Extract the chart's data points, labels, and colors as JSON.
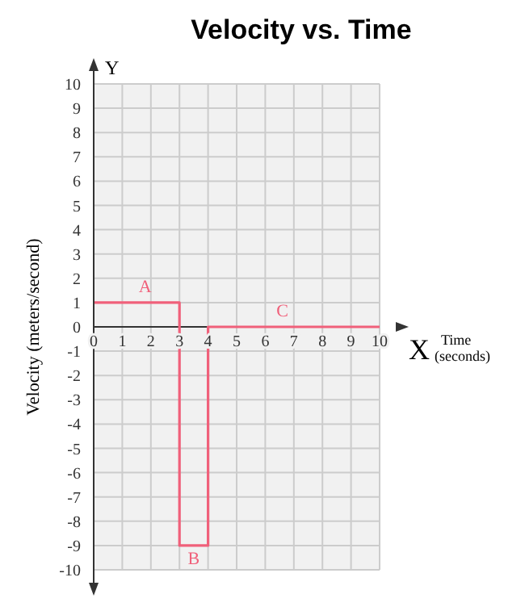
{
  "chart_data": {
    "type": "step",
    "title": "Velocity vs. Time",
    "xlabel": "Time (seconds)",
    "ylabel": "Velocity (meters/second)",
    "x": [
      0,
      3,
      4,
      10
    ],
    "series": [
      {
        "color": "#f0607a",
        "values": [
          1,
          -9,
          0,
          0
        ]
      }
    ],
    "xlim": [
      0,
      10
    ],
    "ylim": [
      -10,
      10
    ],
    "xticks": [
      0,
      1,
      2,
      3,
      4,
      5,
      6,
      7,
      8,
      9,
      10
    ],
    "yticks": [
      -10,
      -9,
      -8,
      -7,
      -6,
      -5,
      -4,
      -3,
      -2,
      -1,
      0,
      1,
      2,
      3,
      4,
      5,
      6,
      7,
      8,
      9,
      10
    ],
    "grid": true,
    "annotations": [
      "Y",
      "X",
      {
        "text": "A",
        "x": 1.8,
        "y": 1
      },
      {
        "text": "B",
        "x": 3.5,
        "y": -9
      },
      {
        "text": "C",
        "x": 6.6,
        "y": 0
      }
    ]
  }
}
